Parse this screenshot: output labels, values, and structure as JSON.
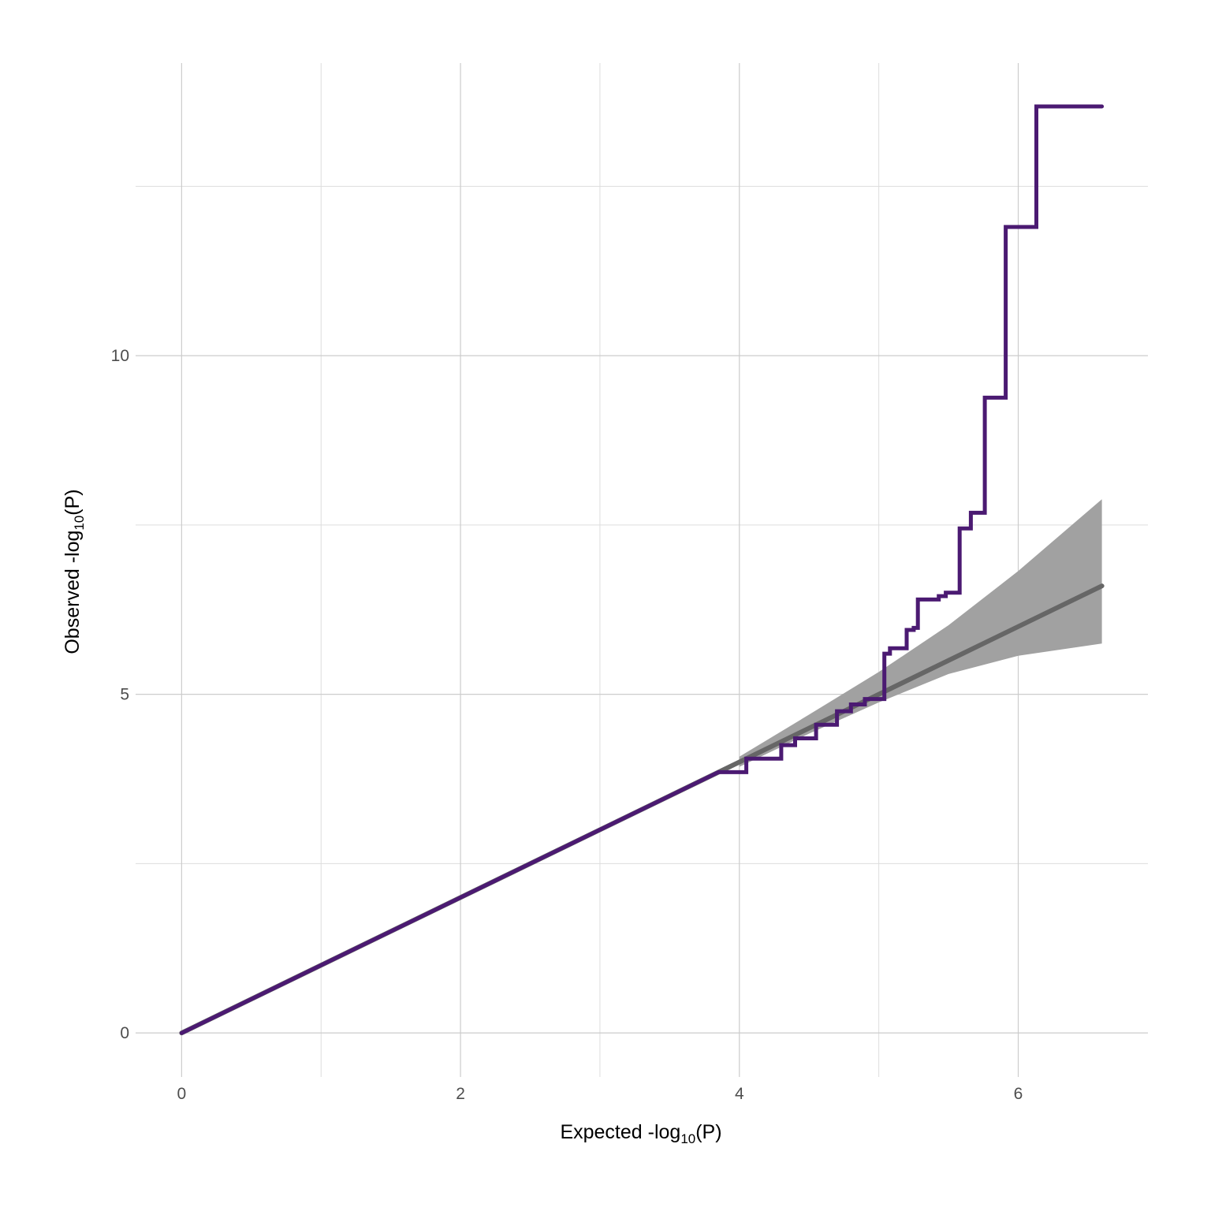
{
  "chart_data": {
    "type": "line",
    "xlabel": {
      "pre": "Expected -log",
      "sub": "10",
      "post": "(P)"
    },
    "ylabel": {
      "pre": "Observed -log",
      "sub": "10",
      "post": "(P)"
    },
    "xlim": [
      -0.33,
      6.93
    ],
    "ylim": [
      -0.65,
      14.32
    ],
    "x_ticks": [
      0,
      2,
      4,
      6
    ],
    "x_minor_ticks": [
      1,
      3,
      5
    ],
    "y_ticks": [
      0,
      5,
      10
    ],
    "y_minor_ticks": [
      2.5,
      7.5,
      12.5
    ],
    "grid": true,
    "colors": {
      "observed": "#4b1a72",
      "expected": "#666666",
      "band": "#a1a1a1",
      "grid": "#cccccc",
      "grid_minor": "#dddddd"
    },
    "expected_line": {
      "x": [
        0,
        6.6
      ],
      "y": [
        0,
        6.6
      ]
    },
    "confidence_band": {
      "x": [
        4.0,
        4.5,
        5.0,
        5.5,
        6.0,
        6.6
      ],
      "upper": [
        4.08,
        4.7,
        5.33,
        6.02,
        6.82,
        7.88
      ],
      "lower": [
        3.93,
        4.42,
        4.88,
        5.3,
        5.57,
        5.75
      ]
    },
    "series": [
      {
        "type": "step",
        "x": [
          0,
          1,
          2,
          2.7,
          3.2,
          3.6,
          3.85,
          4.05,
          4.3,
          4.4,
          4.55,
          4.7,
          4.8,
          4.9,
          5.04,
          5.04,
          5.08,
          5.12,
          5.2,
          5.25,
          5.28,
          5.4,
          5.43,
          5.48,
          5.58,
          5.66,
          5.76,
          5.91,
          6.13,
          6.6
        ],
        "y": [
          0,
          1,
          2,
          2.7,
          3.2,
          3.6,
          3.85,
          4.05,
          4.25,
          4.35,
          4.55,
          4.75,
          4.85,
          4.93,
          5.03,
          5.6,
          5.68,
          5.68,
          5.95,
          5.98,
          6.4,
          6.4,
          6.45,
          6.5,
          7.45,
          7.68,
          9.38,
          11.9,
          13.68,
          13.68
        ]
      }
    ]
  }
}
